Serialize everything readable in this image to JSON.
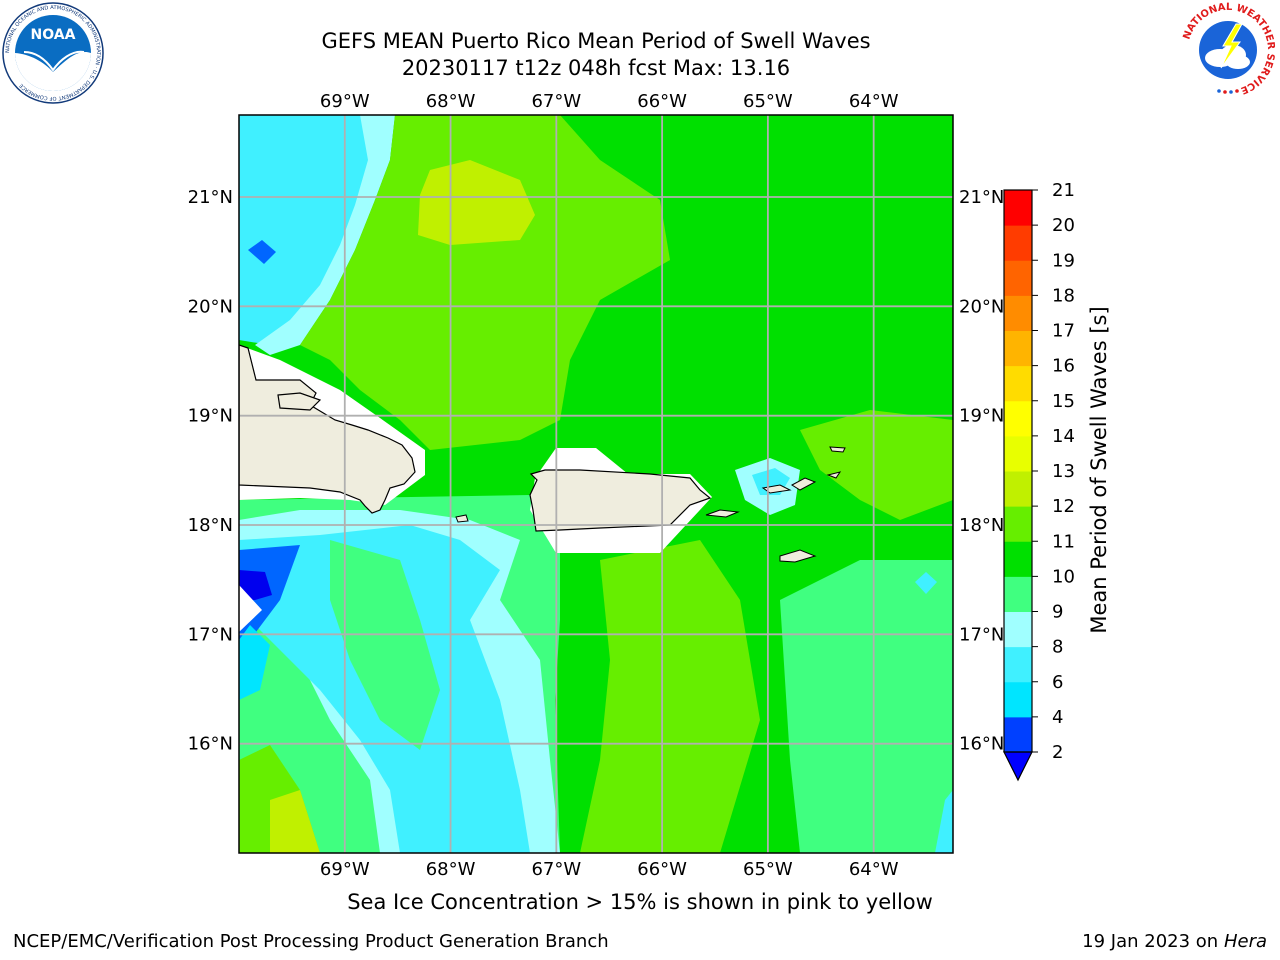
{
  "title": {
    "line1": "GEFS MEAN Puerto Rico Mean Period of Swell Waves",
    "line2": "20230117 t12z 048h fcst   Max: 13.16"
  },
  "map": {
    "lon_ticks": [
      "69°W",
      "68°W",
      "67°W",
      "66°W",
      "65°W",
      "64°W"
    ],
    "lat_ticks": [
      "21°N",
      "20°N",
      "19°N",
      "18°N",
      "17°N",
      "16°N"
    ],
    "lon_range": [
      -70.0,
      -63.25
    ],
    "lat_range": [
      15.0,
      21.75
    ],
    "land_color": "#efedde",
    "coast_color": "#000000",
    "grid_color": "#b0b0b0"
  },
  "colorbar": {
    "label": "Mean Period of Swell Waves [s]",
    "ticks": [
      "2",
      "4",
      "6",
      "8",
      "9",
      "10",
      "11",
      "12",
      "13",
      "14",
      "15",
      "16",
      "17",
      "18",
      "19",
      "20",
      "21"
    ],
    "levels": [
      2,
      4,
      6,
      8,
      9,
      10,
      11,
      12,
      13,
      14,
      15,
      16,
      17,
      18,
      19,
      20,
      21
    ],
    "colors": [
      "#0040ff",
      "#00e5ff",
      "#40f0ff",
      "#a0ffff",
      "#40ff80",
      "#00e000",
      "#66ee00",
      "#c0f000",
      "#e8ff00",
      "#ffff00",
      "#ffdc00",
      "#ffb400",
      "#ff8c00",
      "#ff6400",
      "#ff3c00",
      "#ff0000"
    ],
    "extend_color": "#0000ff"
  },
  "note": "Sea Ice Concentration > 15% is shown in pink to yellow",
  "footer": {
    "left": "NCEP/EMC/Verification Post Processing Product Generation Branch",
    "right_prefix": "19 Jan 2023 on ",
    "right_host": "Hera"
  },
  "logos": {
    "noaa_text": "NOAA",
    "noaa_ring": "NATIONAL OCEANIC AND ATMOSPHERIC ADMINISTRATION · U.S. DEPARTMENT OF COMMERCE",
    "nws_ring": "NATIONAL WEATHER SERVICE"
  },
  "colors": {
    "noaa_blue": "#0a6dc2",
    "noaa_dark": "#123a7a",
    "nws_red": "#e01b1b",
    "nws_blue": "#1a64d8"
  }
}
